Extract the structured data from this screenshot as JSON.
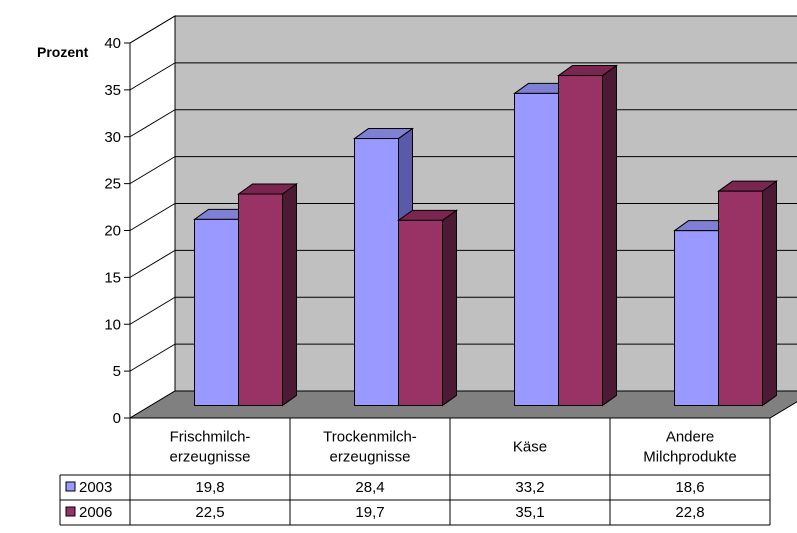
{
  "chart_data": {
    "type": "bar",
    "ylabel": "Prozent",
    "ylim": [
      0,
      40
    ],
    "yticks": [
      0,
      5,
      10,
      15,
      20,
      25,
      30,
      35,
      40
    ],
    "grid": true,
    "three_d": true,
    "categories": [
      [
        "Frischmilch-",
        "erzeugnisse"
      ],
      [
        "Trockenmilch-",
        "erzeugnisse"
      ],
      [
        "Käse"
      ],
      [
        "Andere",
        "Milchprodukte"
      ]
    ],
    "series": [
      {
        "name": "2003",
        "values": [
          19.8,
          28.4,
          33.2,
          18.6
        ],
        "value_labels": [
          "19,8",
          "28,4",
          "33,2",
          "18,6"
        ],
        "color": "#9999ff",
        "top_color": "#7f7fd4",
        "side_color": "#5a5aa8"
      },
      {
        "name": "2006",
        "values": [
          22.5,
          19.7,
          35.1,
          22.8
        ],
        "value_labels": [
          "22,5",
          "19,7",
          "35,1",
          "22,8"
        ],
        "color": "#993366",
        "top_color": "#7a2650",
        "side_color": "#4d1a35"
      }
    ],
    "legend": "data-table-below",
    "colors": {
      "wall": "#c0c0c0",
      "floor": "#808080",
      "grid": "#000000"
    }
  }
}
